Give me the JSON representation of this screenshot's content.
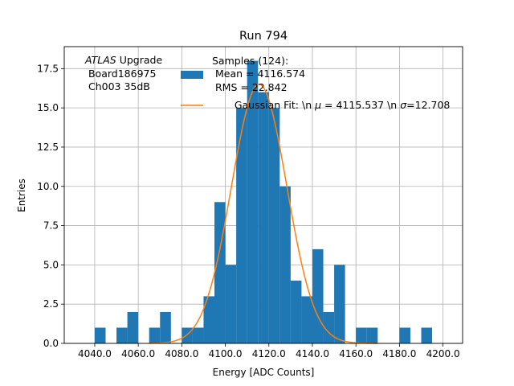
{
  "chart_data": {
    "type": "bar",
    "title": "Run 794",
    "xlabel": "Energy [ADC Counts]",
    "ylabel": "Entries",
    "xlim": [
      4026,
      4209
    ],
    "ylim": [
      0,
      18.9
    ],
    "grid": true,
    "x_ticks": [
      4040,
      4060,
      4080,
      4100,
      4120,
      4140,
      4160,
      4180,
      4200
    ],
    "x_tick_labels": [
      "4040.0",
      "4060.0",
      "4080.0",
      "4100.0",
      "4120.0",
      "4140.0",
      "4160.0",
      "4180.0",
      "4200.0"
    ],
    "y_ticks": [
      0,
      2.5,
      5,
      7.5,
      10,
      12.5,
      15,
      17.5
    ],
    "y_tick_labels": [
      "0.0",
      "2.5",
      "5.0",
      "7.5",
      "10.0",
      "12.5",
      "15.0",
      "17.5"
    ],
    "bin_width": 5,
    "histogram": {
      "name": "Samples (124):\n Mean = 4116.574\n RMS = 22.842",
      "color": "#1f77b4",
      "bins": [
        {
          "x0": 4040,
          "count": 1
        },
        {
          "x0": 4050,
          "count": 1
        },
        {
          "x0": 4055,
          "count": 2
        },
        {
          "x0": 4065,
          "count": 1
        },
        {
          "x0": 4070,
          "count": 2
        },
        {
          "x0": 4080,
          "count": 1
        },
        {
          "x0": 4085,
          "count": 1
        },
        {
          "x0": 4090,
          "count": 3
        },
        {
          "x0": 4095,
          "count": 9
        },
        {
          "x0": 4100,
          "count": 5
        },
        {
          "x0": 4105,
          "count": 15
        },
        {
          "x0": 4110,
          "count": 18
        },
        {
          "x0": 4115,
          "count": 16
        },
        {
          "x0": 4120,
          "count": 15
        },
        {
          "x0": 4125,
          "count": 10
        },
        {
          "x0": 4130,
          "count": 4
        },
        {
          "x0": 4135,
          "count": 3
        },
        {
          "x0": 4140,
          "count": 6
        },
        {
          "x0": 4145,
          "count": 2
        },
        {
          "x0": 4150,
          "count": 5
        },
        {
          "x0": 4160,
          "count": 1
        },
        {
          "x0": 4165,
          "count": 1
        },
        {
          "x0": 4180,
          "count": 1
        },
        {
          "x0": 4190,
          "count": 1
        }
      ]
    },
    "fit": {
      "name": "Gaussian Fit: \\n $\\mu$ = 4115.537 \\n $\\sigma$=12.708",
      "color": "#ff7f0e",
      "mu": 4115.537,
      "sigma": 12.708,
      "amplitude": 16.5
    },
    "annotation": {
      "line1_italic": "ATLAS",
      "line1_rest": " Upgrade",
      "line2": " Board186975",
      "line3": " Ch003 35dB"
    },
    "legend": {
      "placement": "top-center",
      "hist_line1": "Samples (124):",
      "hist_line2": " Mean = 4116.574",
      "hist_line3": " RMS = 22.842",
      "fit_prefix": "Gaussian Fit: \\n ",
      "fit_mu_symbol": "μ",
      "fit_mid": " = 4115.537 \\n ",
      "fit_sigma_symbol": "σ",
      "fit_suffix": "=12.708"
    }
  }
}
